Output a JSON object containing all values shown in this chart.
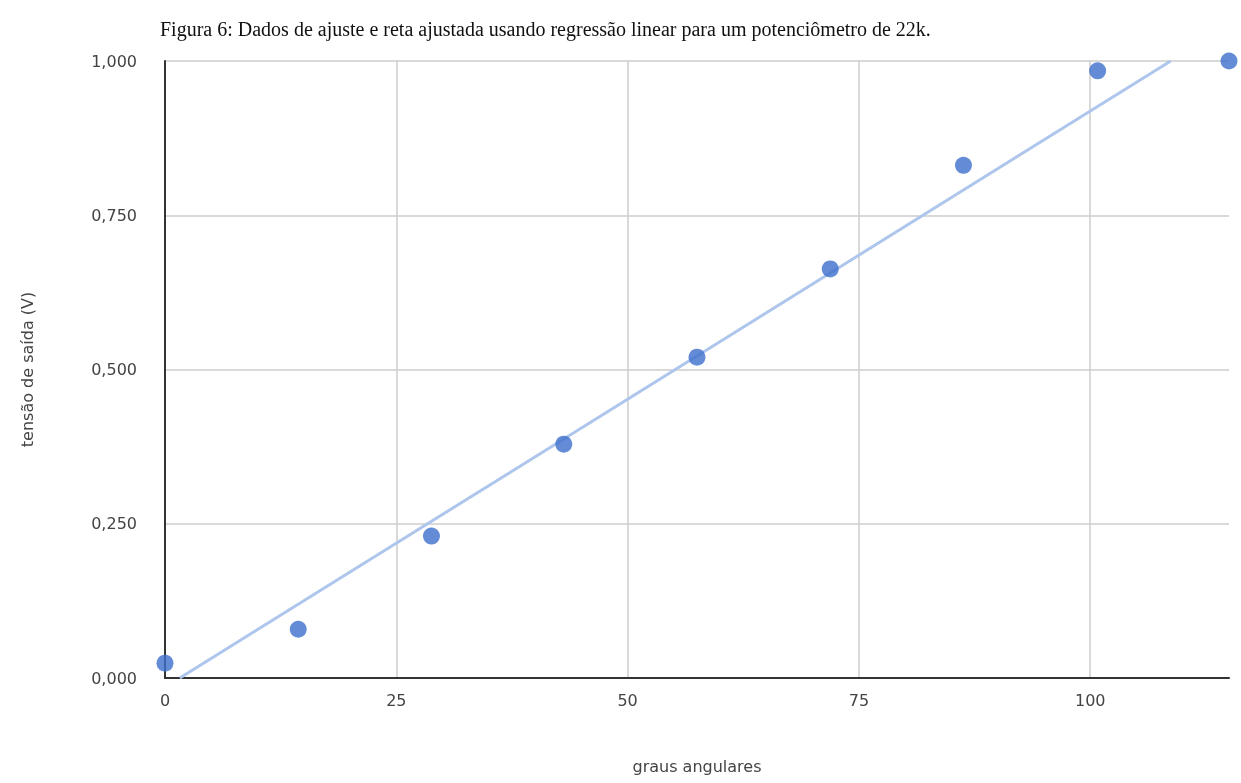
{
  "chart_data": {
    "type": "scatter",
    "title": "Figura 6: Dados de ajuste e reta ajustada usando regressão linear para um potenciômetro de 22k.",
    "xlabel": "graus angulares",
    "ylabel": "tensão de saída (V)",
    "xlim": [
      0,
      115
    ],
    "ylim": [
      0,
      1
    ],
    "xticks": [
      0,
      25,
      50,
      75,
      100
    ],
    "yticks": [
      {
        "value": 0,
        "label": "0,000"
      },
      {
        "value": 0.25,
        "label": "0,250"
      },
      {
        "value": 0.5,
        "label": "0,500"
      },
      {
        "value": 0.75,
        "label": "0,750"
      },
      {
        "value": 1,
        "label": "1,000"
      }
    ],
    "grid": true,
    "series": [
      {
        "type": "scatter",
        "marker": "circle",
        "color": "#3d6fcc",
        "x": [
          0,
          14.4,
          28.8,
          43.1,
          57.5,
          71.9,
          86.3,
          100.8,
          115
        ],
        "values": [
          0.024,
          0.079,
          0.23,
          0.379,
          0.52,
          0.663,
          0.831,
          0.984,
          1.0
        ]
      },
      {
        "type": "line",
        "color": "#aec6ec",
        "x": [
          1.6,
          108.7
        ],
        "values": [
          0,
          1.0
        ]
      }
    ]
  }
}
